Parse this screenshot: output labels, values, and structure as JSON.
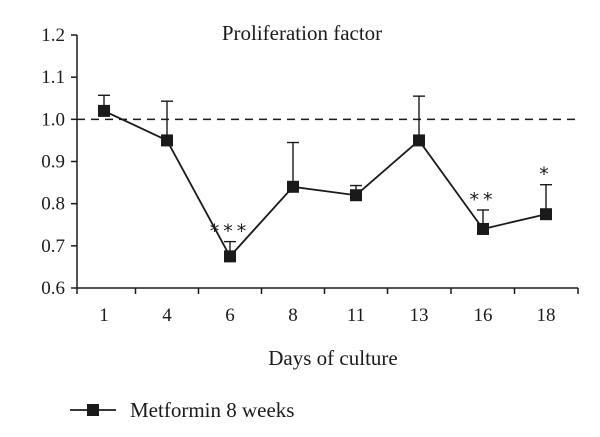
{
  "chart_data": {
    "type": "line",
    "title": "Proliferation factor",
    "xlabel": "Days of culture",
    "ylabel": "",
    "categories": [
      "1",
      "4",
      "6",
      "8",
      "11",
      "13",
      "16",
      "18"
    ],
    "ylim": [
      0.6,
      1.2
    ],
    "yticks": [
      "0.6",
      "0.7",
      "0.8",
      "0.9",
      "1.0",
      "1.1",
      "1.2"
    ],
    "reference_line": 1.0,
    "grid": false,
    "legend_position": "bottom-left",
    "series": [
      {
        "name": "Metformin 8 weeks",
        "color": "#1a1a1a",
        "marker": "square",
        "values": [
          1.02,
          0.95,
          0.675,
          0.84,
          0.82,
          0.95,
          0.74,
          0.775
        ],
        "error_upper": [
          1.057,
          1.043,
          0.71,
          0.945,
          0.843,
          1.055,
          0.785,
          0.845
        ],
        "significance": [
          "",
          "",
          "***",
          "",
          "",
          "",
          "**",
          "*"
        ]
      }
    ]
  }
}
